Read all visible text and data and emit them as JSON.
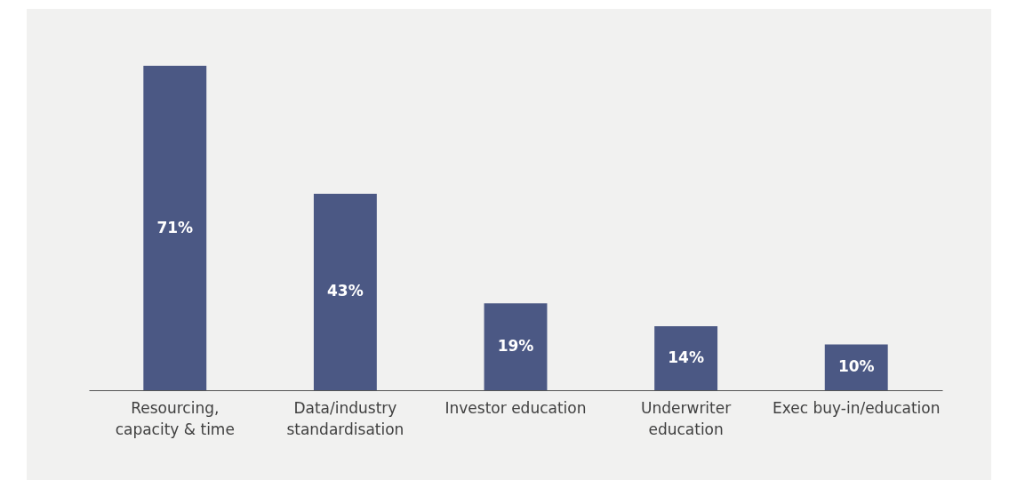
{
  "chart_data": {
    "type": "bar",
    "categories": [
      "Resourcing,\ncapacity & time",
      "Data/industry\nstandardisation",
      "Investor education",
      "Underwriter\neducation",
      "Exec buy-in/education"
    ],
    "values": [
      71,
      43,
      19,
      14,
      10
    ],
    "color": "#4b5884",
    "value_labels": [
      "71%",
      "43%",
      "19%",
      "14%",
      "10%"
    ]
  }
}
